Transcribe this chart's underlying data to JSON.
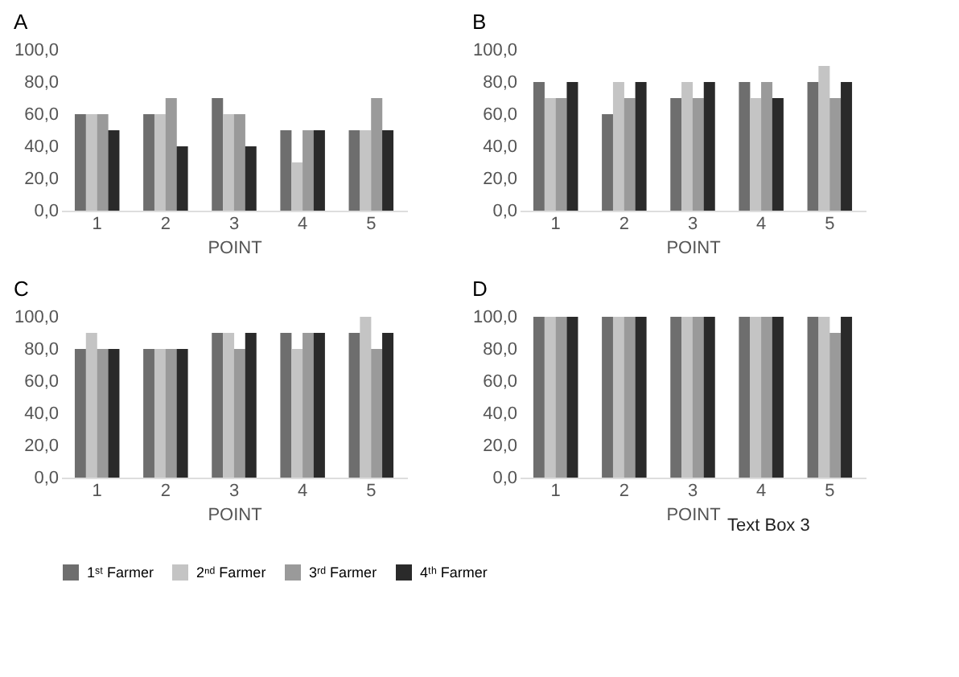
{
  "chart_data": [
    {
      "type": "bar",
      "title": "A",
      "xlabel": "POINT",
      "categories": [
        "1",
        "2",
        "3",
        "4",
        "5"
      ],
      "ylim": [
        0,
        100
      ],
      "yticks": [
        {
          "value": 0,
          "label": "0,0"
        },
        {
          "value": 20,
          "label": "20,0"
        },
        {
          "value": 40,
          "label": "40,0"
        },
        {
          "value": 60,
          "label": "60,0"
        },
        {
          "value": 80,
          "label": "80,0"
        },
        {
          "value": 100,
          "label": "100,0"
        }
      ],
      "grid": false,
      "legend": "bottom",
      "series": [
        {
          "name": "1ˢᵗ Farmer",
          "color": "#6e6e6e",
          "values": [
            60,
            60,
            70,
            50,
            50
          ]
        },
        {
          "name": "2ⁿᵈ Farmer",
          "color": "#c4c4c4",
          "values": [
            60,
            60,
            60,
            30,
            50
          ]
        },
        {
          "name": "3ʳᵈ Farmer",
          "color": "#9a9a9a",
          "values": [
            60,
            70,
            60,
            50,
            70
          ]
        },
        {
          "name": "4ᵗʰ Farmer",
          "color": "#2a2a2a",
          "values": [
            50,
            40,
            40,
            50,
            50
          ]
        }
      ]
    },
    {
      "type": "bar",
      "title": "B",
      "xlabel": "POINT",
      "categories": [
        "1",
        "2",
        "3",
        "4",
        "5"
      ],
      "ylim": [
        0,
        100
      ],
      "yticks": [
        {
          "value": 0,
          "label": "0,0"
        },
        {
          "value": 20,
          "label": "20,0"
        },
        {
          "value": 40,
          "label": "40,0"
        },
        {
          "value": 60,
          "label": "60,0"
        },
        {
          "value": 80,
          "label": "80,0"
        },
        {
          "value": 100,
          "label": "100,0"
        }
      ],
      "grid": false,
      "legend": "bottom",
      "series": [
        {
          "name": "1ˢᵗ Farmer",
          "color": "#6e6e6e",
          "values": [
            80,
            60,
            70,
            80,
            80
          ]
        },
        {
          "name": "2ⁿᵈ Farmer",
          "color": "#c4c4c4",
          "values": [
            70,
            80,
            80,
            70,
            90
          ]
        },
        {
          "name": "3ʳᵈ Farmer",
          "color": "#9a9a9a",
          "values": [
            70,
            70,
            70,
            80,
            70
          ]
        },
        {
          "name": "4ᵗʰ Farmer",
          "color": "#2a2a2a",
          "values": [
            80,
            80,
            80,
            70,
            80
          ]
        }
      ]
    },
    {
      "type": "bar",
      "title": "C",
      "xlabel": "POINT",
      "categories": [
        "1",
        "2",
        "3",
        "4",
        "5"
      ],
      "ylim": [
        0,
        100
      ],
      "yticks": [
        {
          "value": 0,
          "label": "0,0"
        },
        {
          "value": 20,
          "label": "20,0"
        },
        {
          "value": 40,
          "label": "40,0"
        },
        {
          "value": 60,
          "label": "60,0"
        },
        {
          "value": 80,
          "label": "80,0"
        },
        {
          "value": 100,
          "label": "100,0"
        }
      ],
      "grid": false,
      "legend": "bottom",
      "series": [
        {
          "name": "1ˢᵗ Farmer",
          "color": "#6e6e6e",
          "values": [
            80,
            80,
            90,
            90,
            90
          ]
        },
        {
          "name": "2ⁿᵈ Farmer",
          "color": "#c4c4c4",
          "values": [
            90,
            80,
            90,
            80,
            100
          ]
        },
        {
          "name": "3ʳᵈ Farmer",
          "color": "#9a9a9a",
          "values": [
            80,
            80,
            80,
            90,
            80
          ]
        },
        {
          "name": "4ᵗʰ Farmer",
          "color": "#2a2a2a",
          "values": [
            80,
            80,
            90,
            90,
            90
          ]
        }
      ]
    },
    {
      "type": "bar",
      "title": "D",
      "xlabel": "POINT",
      "categories": [
        "1",
        "2",
        "3",
        "4",
        "5"
      ],
      "ylim": [
        0,
        100
      ],
      "yticks": [
        {
          "value": 0,
          "label": "0,0"
        },
        {
          "value": 20,
          "label": "20,0"
        },
        {
          "value": 40,
          "label": "40,0"
        },
        {
          "value": 60,
          "label": "60,0"
        },
        {
          "value": 80,
          "label": "80,0"
        },
        {
          "value": 100,
          "label": "100,0"
        }
      ],
      "grid": false,
      "legend": "bottom",
      "annotations": [
        "Text Box 3"
      ],
      "series": [
        {
          "name": "1ˢᵗ Farmer",
          "color": "#6e6e6e",
          "values": [
            100,
            100,
            100,
            100,
            100
          ]
        },
        {
          "name": "2ⁿᵈ Farmer",
          "color": "#c4c4c4",
          "values": [
            100,
            100,
            100,
            100,
            100
          ]
        },
        {
          "name": "3ʳᵈ Farmer",
          "color": "#9a9a9a",
          "values": [
            100,
            100,
            100,
            100,
            90
          ]
        },
        {
          "name": "4ᵗʰ Farmer",
          "color": "#2a2a2a",
          "values": [
            100,
            100,
            100,
            100,
            100
          ]
        }
      ]
    }
  ]
}
